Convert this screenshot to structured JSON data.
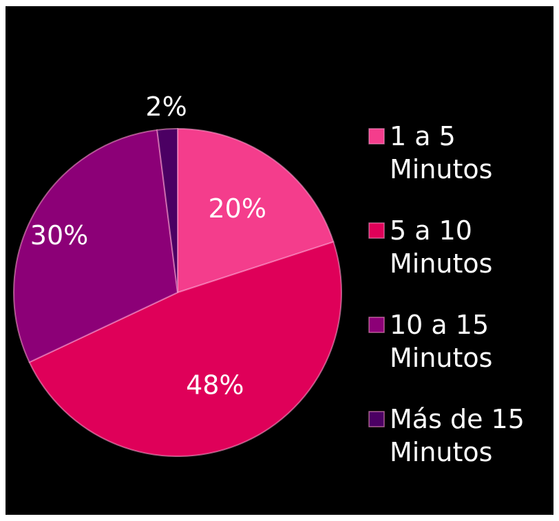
{
  "chart_data": {
    "type": "pie",
    "title": "",
    "categories": [
      "1 a 5 Minutos",
      " 5 a 10 Minutos",
      "10 a 15 Minutos",
      "Más de 15 Minutos"
    ],
    "values": [
      20,
      48,
      30,
      2
    ],
    "value_labels": [
      "20%",
      "48%",
      "30%",
      "2%"
    ],
    "legend": {
      "placement": "right",
      "entries": [
        {
          "line1": "1 a 5",
          "line2": "Minutos"
        },
        {
          "line1": " 5 a 10",
          "line2": "Minutos"
        },
        {
          "line1": "10 a 15",
          "line2": "Minutos"
        },
        {
          "line1": "Más de 15",
          "line2": "Minutos"
        }
      ]
    },
    "colors": [
      "#f43d8c",
      "#df0059",
      "#8c0077",
      "#4b0063"
    ]
  },
  "background": "#000000"
}
